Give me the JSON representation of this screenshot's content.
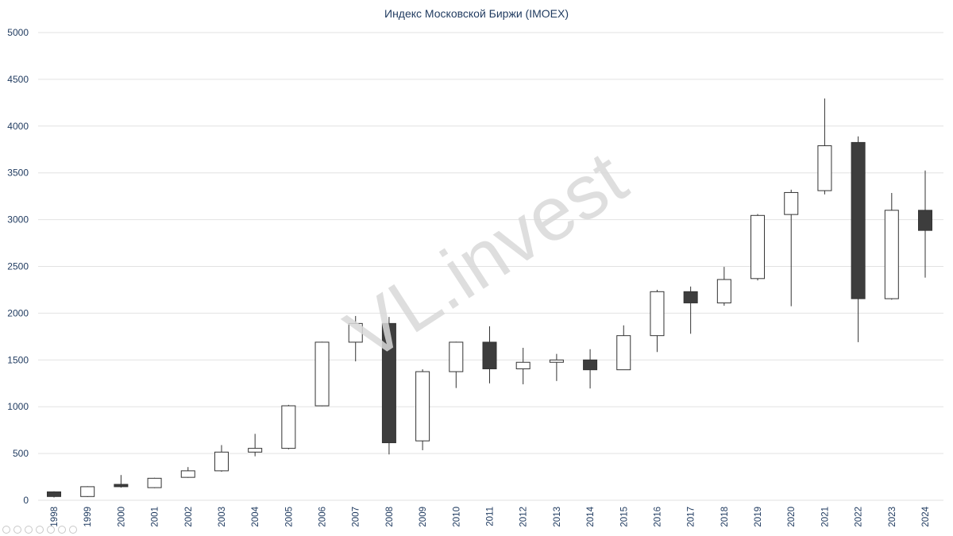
{
  "watermark": "VL.invest",
  "chart_data": {
    "type": "candlestick",
    "title": "Индекс Московской Биржи (IMOEX)",
    "xlabel": "",
    "ylabel": "",
    "ylim": [
      0,
      5000
    ],
    "yticks": [
      0,
      500,
      1000,
      1500,
      2000,
      2500,
      3000,
      3500,
      4000,
      4500,
      5000
    ],
    "grid": true,
    "colors": {
      "up": "#ffffff",
      "down": "#3d3d3d",
      "outline": "#333333",
      "text": "#1f3a5f"
    },
    "categories": [
      "1998",
      "1999",
      "2000",
      "2001",
      "2002",
      "2003",
      "2004",
      "2005",
      "2006",
      "2007",
      "2008",
      "2009",
      "2010",
      "2011",
      "2012",
      "2013",
      "2014",
      "2015",
      "2016",
      "2017",
      "2018",
      "2019",
      "2020",
      "2021",
      "2022",
      "2023",
      "2024"
    ],
    "ohlc": [
      {
        "x": "1998",
        "open": 90,
        "high": 95,
        "low": 30,
        "close": 40
      },
      {
        "x": "1999",
        "open": 40,
        "high": 150,
        "low": 35,
        "close": 145
      },
      {
        "x": "2000",
        "open": 170,
        "high": 270,
        "low": 135,
        "close": 145
      },
      {
        "x": "2001",
        "open": 135,
        "high": 240,
        "low": 130,
        "close": 235
      },
      {
        "x": "2002",
        "open": 245,
        "high": 355,
        "low": 240,
        "close": 315
      },
      {
        "x": "2003",
        "open": 315,
        "high": 590,
        "low": 305,
        "close": 515
      },
      {
        "x": "2004",
        "open": 515,
        "high": 710,
        "low": 470,
        "close": 555
      },
      {
        "x": "2005",
        "open": 555,
        "high": 1020,
        "low": 545,
        "close": 1010
      },
      {
        "x": "2006",
        "open": 1010,
        "high": 1695,
        "low": 1005,
        "close": 1690
      },
      {
        "x": "2007",
        "open": 1690,
        "high": 1970,
        "low": 1485,
        "close": 1890
      },
      {
        "x": "2008",
        "open": 1890,
        "high": 1960,
        "low": 490,
        "close": 615
      },
      {
        "x": "2009",
        "open": 635,
        "high": 1400,
        "low": 535,
        "close": 1375
      },
      {
        "x": "2010",
        "open": 1375,
        "high": 1695,
        "low": 1200,
        "close": 1690
      },
      {
        "x": "2011",
        "open": 1690,
        "high": 1860,
        "low": 1250,
        "close": 1405
      },
      {
        "x": "2012",
        "open": 1405,
        "high": 1630,
        "low": 1240,
        "close": 1475
      },
      {
        "x": "2013",
        "open": 1475,
        "high": 1565,
        "low": 1275,
        "close": 1500
      },
      {
        "x": "2014",
        "open": 1500,
        "high": 1615,
        "low": 1195,
        "close": 1395
      },
      {
        "x": "2015",
        "open": 1395,
        "high": 1870,
        "low": 1395,
        "close": 1760
      },
      {
        "x": "2016",
        "open": 1760,
        "high": 2250,
        "low": 1585,
        "close": 2230
      },
      {
        "x": "2017",
        "open": 2230,
        "high": 2285,
        "low": 1780,
        "close": 2110
      },
      {
        "x": "2018",
        "open": 2110,
        "high": 2495,
        "low": 2080,
        "close": 2360
      },
      {
        "x": "2019",
        "open": 2370,
        "high": 3060,
        "low": 2350,
        "close": 3045
      },
      {
        "x": "2020",
        "open": 3055,
        "high": 3320,
        "low": 2075,
        "close": 3290
      },
      {
        "x": "2021",
        "open": 3310,
        "high": 4295,
        "low": 3270,
        "close": 3790
      },
      {
        "x": "2022",
        "open": 3825,
        "high": 3890,
        "low": 1690,
        "close": 2155
      },
      {
        "x": "2023",
        "open": 2155,
        "high": 3285,
        "low": 2145,
        "close": 3100
      },
      {
        "x": "2024",
        "open": 3100,
        "high": 3525,
        "low": 2380,
        "close": 2885
      }
    ]
  }
}
